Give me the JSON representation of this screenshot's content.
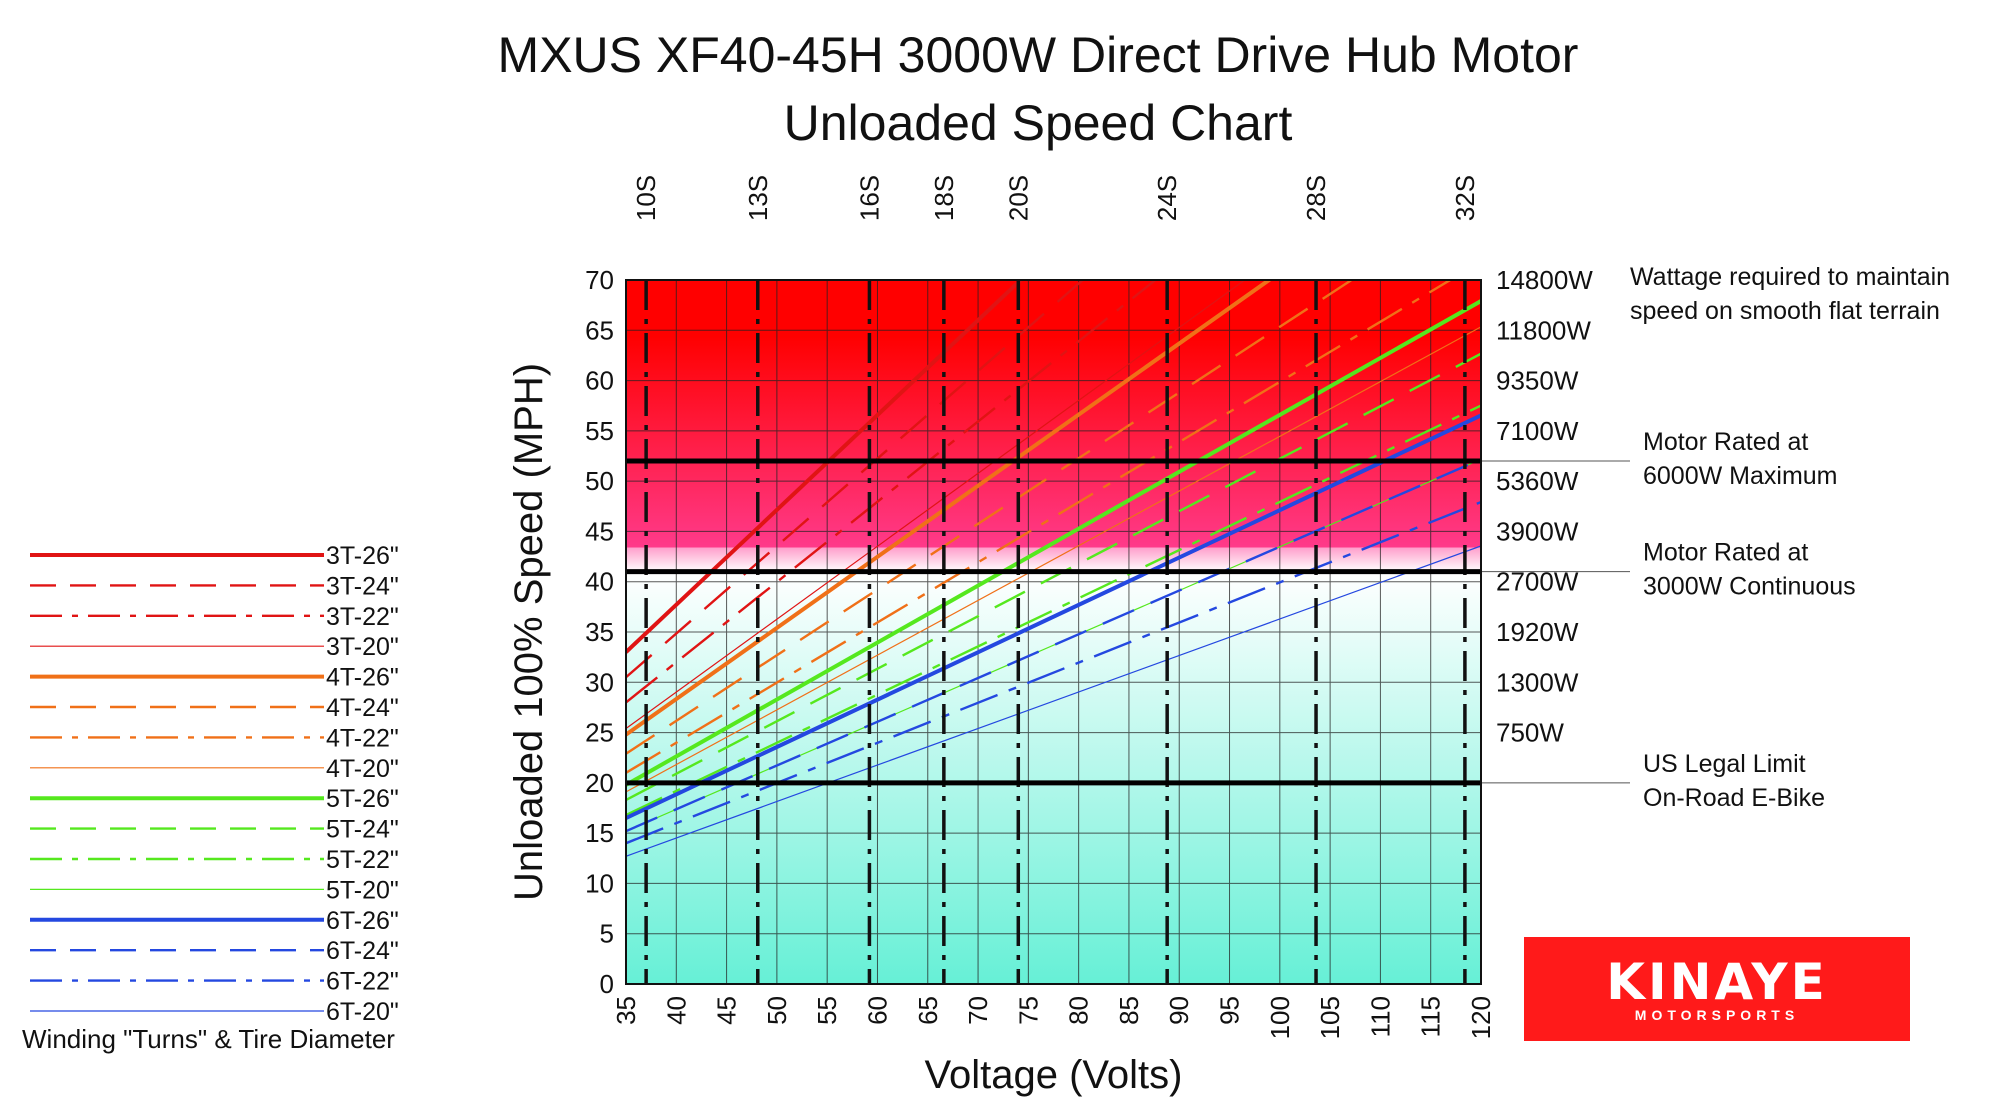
{
  "chart_data": {
    "type": "line",
    "title": "MXUS XF40-45H 3000W Direct Drive Hub Motor",
    "subtitle": "Unloaded Speed Chart",
    "xlabel": "Voltage (Volts)",
    "ylabel": "Unloaded 100% Speed (MPH)",
    "xlim": [
      35,
      120
    ],
    "ylim": [
      0,
      70
    ],
    "x_ticks": [
      "35",
      "40",
      "45",
      "50",
      "55",
      "60",
      "65",
      "70",
      "75",
      "80",
      "85",
      "90",
      "95",
      "100",
      "105",
      "110",
      "115",
      "120"
    ],
    "y_ticks": [
      "0",
      "5",
      "10",
      "15",
      "20",
      "25",
      "30",
      "35",
      "40",
      "45",
      "50",
      "55",
      "60",
      "65",
      "70"
    ],
    "grid": true,
    "background_gradient": {
      "top": "#ff0000",
      "upper_mid": "#ff9ecb",
      "at_41mph": "#ffffff",
      "bottom": "#66f0d6"
    },
    "series_count_label": "legend left",
    "series": [
      {
        "name": "3T-26\"",
        "color": "#e01414",
        "style": "solid",
        "weight": "thick",
        "speed_at_35V": 33,
        "speed_per_volt": 0.943
      },
      {
        "name": "3T-24\"",
        "color": "#e01414",
        "style": "dash",
        "weight": "medium",
        "speed_at_35V": 30.5,
        "speed_per_volt": 0.87
      },
      {
        "name": "3T-22\"",
        "color": "#e01414",
        "style": "dashdot",
        "weight": "medium",
        "speed_at_35V": 28,
        "speed_per_volt": 0.798
      },
      {
        "name": "3T-20\"",
        "color": "#e01414",
        "style": "solid",
        "weight": "thin",
        "speed_at_35V": 25.4,
        "speed_per_volt": 0.725
      },
      {
        "name": "4T-26\"",
        "color": "#f07018",
        "style": "solid",
        "weight": "thick",
        "speed_at_35V": 24.8,
        "speed_per_volt": 0.707
      },
      {
        "name": "4T-24\"",
        "color": "#f07018",
        "style": "dash",
        "weight": "medium",
        "speed_at_35V": 22.9,
        "speed_per_volt": 0.653
      },
      {
        "name": "4T-22\"",
        "color": "#f07018",
        "style": "dashdot",
        "weight": "medium",
        "speed_at_35V": 21,
        "speed_per_volt": 0.598
      },
      {
        "name": "4T-20\"",
        "color": "#f07018",
        "style": "solid",
        "weight": "thin",
        "speed_at_35V": 19.1,
        "speed_per_volt": 0.544
      },
      {
        "name": "5T-26\"",
        "color": "#55e81e",
        "style": "solid",
        "weight": "thick",
        "speed_at_35V": 19.8,
        "speed_per_volt": 0.566
      },
      {
        "name": "5T-24\"",
        "color": "#55e81e",
        "style": "dash",
        "weight": "medium",
        "speed_at_35V": 18.3,
        "speed_per_volt": 0.522
      },
      {
        "name": "5T-22\"",
        "color": "#55e81e",
        "style": "dashdot",
        "weight": "medium",
        "speed_at_35V": 16.8,
        "speed_per_volt": 0.479
      },
      {
        "name": "5T-20\"",
        "color": "#55e81e",
        "style": "solid",
        "weight": "thin",
        "speed_at_35V": 15.2,
        "speed_per_volt": 0.435
      },
      {
        "name": "6T-26\"",
        "color": "#2448e0",
        "style": "solid",
        "weight": "thick",
        "speed_at_35V": 16.5,
        "speed_per_volt": 0.471
      },
      {
        "name": "6T-24\"",
        "color": "#2448e0",
        "style": "dash",
        "weight": "medium",
        "speed_at_35V": 15.2,
        "speed_per_volt": 0.435
      },
      {
        "name": "6T-22\"",
        "color": "#2448e0",
        "style": "dashdot",
        "weight": "medium",
        "speed_at_35V": 14,
        "speed_per_volt": 0.399
      },
      {
        "name": "6T-20\"",
        "color": "#2448e0",
        "style": "solid",
        "weight": "thin",
        "speed_at_35V": 12.7,
        "speed_per_volt": 0.363
      }
    ],
    "cell_counts": [
      {
        "label": "10S",
        "volts": 37
      },
      {
        "label": "13S",
        "volts": 48.1
      },
      {
        "label": "16S",
        "volts": 59.2
      },
      {
        "label": "18S",
        "volts": 66.6
      },
      {
        "label": "20S",
        "volts": 74
      },
      {
        "label": "24S",
        "volts": 88.8
      },
      {
        "label": "28S",
        "volts": 103.6
      },
      {
        "label": "32S",
        "volts": 118.4
      }
    ],
    "wattage_labels": [
      {
        "label": "14800W",
        "mph": 70
      },
      {
        "label": "11800W",
        "mph": 65
      },
      {
        "label": "9350W",
        "mph": 60
      },
      {
        "label": "7100W",
        "mph": 55
      },
      {
        "label": "5360W",
        "mph": 50
      },
      {
        "label": "3900W",
        "mph": 45
      },
      {
        "label": "2700W",
        "mph": 40
      },
      {
        "label": "1920W",
        "mph": 35
      },
      {
        "label": "1300W",
        "mph": 30
      },
      {
        "label": "750W",
        "mph": 25
      }
    ],
    "reference_lines": [
      {
        "mph": 52,
        "label_lines": [
          "Motor Rated at",
          "6000W Maximum"
        ]
      },
      {
        "mph": 41,
        "label_lines": [
          "Motor Rated at",
          "3000W Continuous"
        ]
      },
      {
        "mph": 20,
        "label_lines": [
          "US Legal Limit",
          "On-Road E-Bike"
        ]
      }
    ],
    "wattage_note_lines": [
      "Wattage required to maintain",
      "speed on smooth flat terrain"
    ]
  },
  "legend": {
    "caption": "Winding \"Turns\" & Tire Diameter"
  },
  "logo": {
    "main": "KINAYE",
    "sub": "MOTORSPORTS"
  }
}
